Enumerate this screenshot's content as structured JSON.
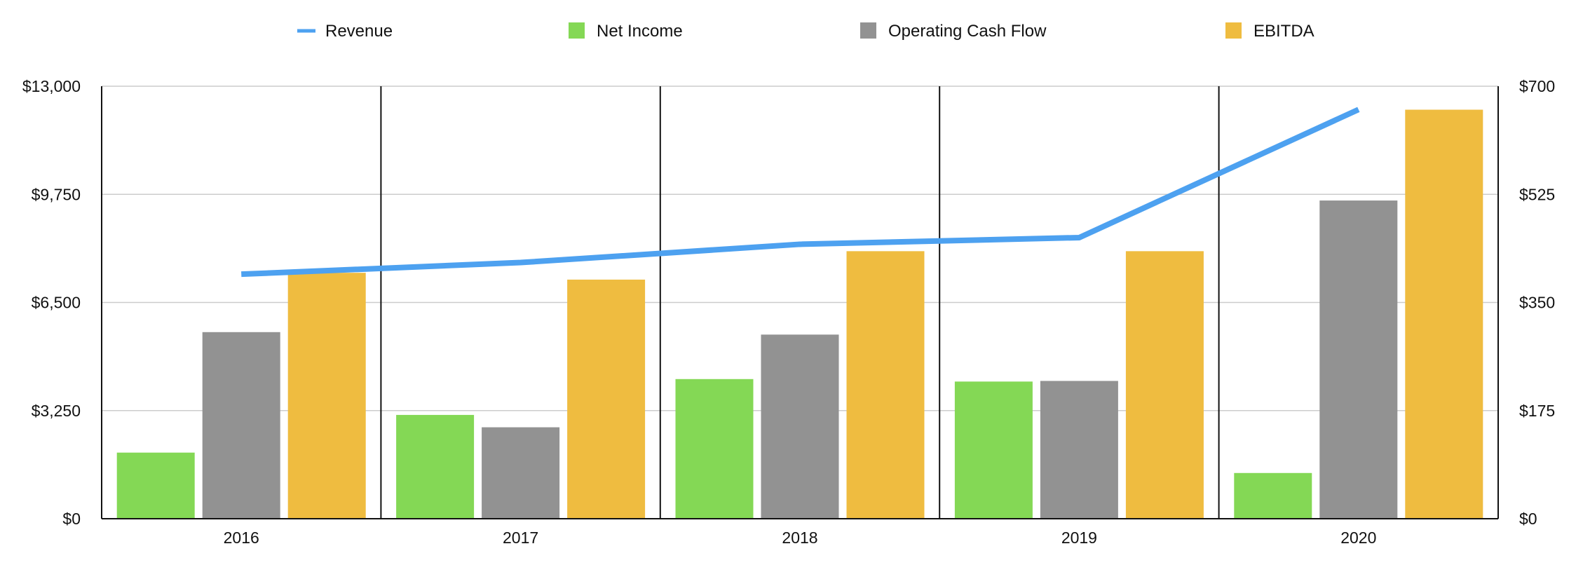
{
  "chart_data": {
    "type": "bar",
    "categories": [
      "2016",
      "2017",
      "2018",
      "2019",
      "2020"
    ],
    "series": [
      {
        "name": "Net Income",
        "type": "bar",
        "axis": "right",
        "color": "#84d855",
        "values": [
          107,
          168,
          226,
          222,
          74
        ]
      },
      {
        "name": "Operating Cash Flow",
        "type": "bar",
        "axis": "right",
        "color": "#929292",
        "values": [
          302,
          148,
          298,
          223,
          515
        ]
      },
      {
        "name": "EBITDA",
        "type": "bar",
        "axis": "right",
        "color": "#efbc40",
        "values": [
          398,
          387,
          433,
          433,
          662
        ]
      },
      {
        "name": "Revenue",
        "type": "line",
        "axis": "left",
        "color": "#4da1f0",
        "values": [
          7350,
          7700,
          8250,
          8450,
          12300
        ]
      }
    ],
    "left_axis": {
      "ylim": [
        0,
        13000
      ],
      "ticks": [
        "$0",
        "$3,250",
        "$6,500",
        "$9,750",
        "$13,000"
      ]
    },
    "right_axis": {
      "ylim": [
        0,
        700
      ],
      "ticks": [
        "$0",
        "$175",
        "$350",
        "$525",
        "$700"
      ]
    },
    "legend": {
      "position": "top",
      "order": [
        "Revenue",
        "Net Income",
        "Operating Cash Flow",
        "EBITDA"
      ]
    },
    "grid": true
  }
}
